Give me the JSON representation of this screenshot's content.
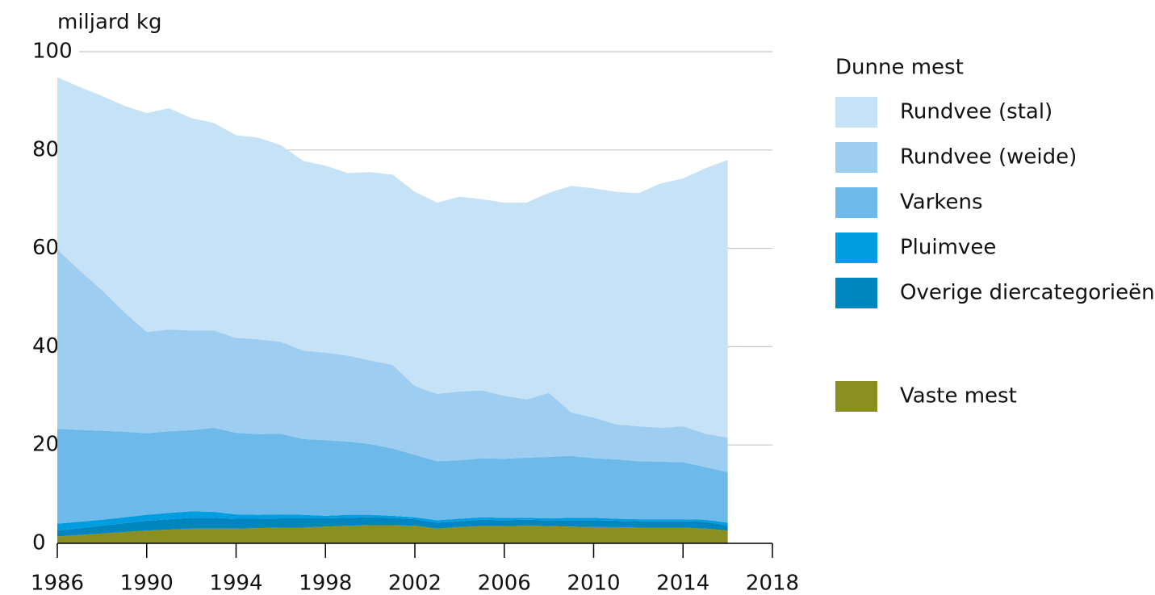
{
  "chart_data": {
    "type": "stacked_area",
    "title": "miljard kg",
    "legend_title": "Dunne mest",
    "x": [
      1986,
      1987,
      1988,
      1989,
      1990,
      1991,
      1992,
      1993,
      1994,
      1995,
      1996,
      1997,
      1998,
      1999,
      2000,
      2001,
      2002,
      2003,
      2004,
      2005,
      2006,
      2007,
      2008,
      2009,
      2010,
      2011,
      2012,
      2013,
      2014,
      2015,
      2016
    ],
    "series": [
      {
        "name": "Rundvee (stal)",
        "color": "#c6e2f7",
        "values": [
          35.0,
          37.3,
          39.5,
          42.0,
          44.5,
          45.0,
          43.2,
          42.2,
          41.2,
          41.0,
          40.0,
          38.6,
          38.0,
          37.1,
          38.3,
          38.7,
          39.5,
          38.9,
          39.6,
          38.9,
          39.3,
          40.0,
          40.7,
          46.1,
          46.6,
          47.3,
          47.4,
          49.7,
          50.4,
          54.0,
          56.5
        ]
      },
      {
        "name": "Rundvee (weide)",
        "color": "#9ecdf2",
        "values": [
          36.5,
          32.4,
          28.6,
          24.3,
          20.6,
          20.7,
          20.3,
          19.8,
          19.3,
          19.3,
          18.7,
          18.0,
          17.8,
          17.5,
          17.0,
          17.0,
          14.0,
          13.7,
          14.0,
          13.8,
          12.8,
          11.9,
          13.0,
          8.8,
          8.3,
          7.1,
          7.1,
          6.9,
          7.3,
          6.8,
          7.0
        ]
      },
      {
        "name": "Varkens",
        "color": "#6cb9ea",
        "values": [
          19.3,
          18.7,
          18.1,
          17.4,
          16.6,
          16.6,
          16.5,
          17.1,
          16.6,
          16.4,
          16.4,
          15.4,
          15.4,
          14.9,
          14.4,
          13.7,
          12.7,
          12.0,
          11.9,
          12.0,
          12.0,
          12.2,
          12.5,
          12.6,
          12.1,
          12.1,
          11.8,
          11.7,
          11.6,
          10.7,
          10.3
        ]
      },
      {
        "name": "Pluimvee",
        "color": "#009de0",
        "values": [
          1.4,
          1.3,
          1.2,
          1.2,
          1.2,
          1.3,
          1.3,
          1.2,
          0.9,
          0.8,
          0.8,
          0.7,
          0.5,
          0.6,
          0.5,
          0.4,
          0.4,
          0.5,
          0.5,
          0.5,
          0.5,
          0.4,
          0.4,
          0.5,
          0.5,
          0.4,
          0.4,
          0.4,
          0.4,
          0.4,
          0.6
        ]
      },
      {
        "name": "Overige diercategorieën",
        "color": "#0085be",
        "values": [
          1.2,
          1.4,
          1.6,
          1.8,
          2.0,
          2.1,
          2.2,
          2.2,
          2.0,
          1.9,
          1.9,
          1.9,
          1.7,
          1.6,
          1.6,
          1.5,
          1.3,
          1.2,
          1.2,
          1.3,
          1.2,
          1.2,
          1.2,
          1.3,
          1.4,
          1.3,
          1.3,
          1.3,
          1.3,
          1.4,
          1.0
        ]
      },
      {
        "name": "Vaste mest",
        "color": "#8b8f22",
        "values": [
          1.4,
          1.7,
          2.0,
          2.3,
          2.6,
          2.8,
          3.0,
          3.0,
          3.0,
          3.1,
          3.2,
          3.2,
          3.4,
          3.6,
          3.7,
          3.7,
          3.6,
          3.0,
          3.3,
          3.5,
          3.5,
          3.6,
          3.5,
          3.4,
          3.3,
          3.3,
          3.2,
          3.2,
          3.2,
          3.0,
          2.6
        ]
      }
    ],
    "xlim": [
      1986,
      2018
    ],
    "xticks": [
      1986,
      1990,
      1994,
      1998,
      2002,
      2006,
      2010,
      2014,
      2018
    ],
    "ylim": [
      0,
      100
    ],
    "yticks": [
      0,
      20,
      40,
      60,
      80,
      100
    ],
    "grid": true
  }
}
